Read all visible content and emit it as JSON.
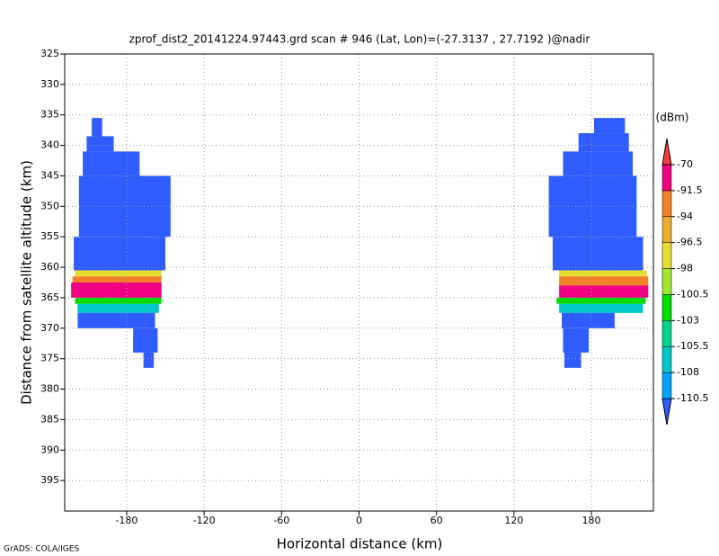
{
  "chart_data": {
    "type": "heatmap",
    "title": "zprof_dist2_20141224.97443.grd  scan # 946  (Lat, Lon)=(-27.3137 , 27.7192 )@nadir",
    "x_label": "Horizontal distance (km)",
    "y_label": "Distance from satellite altitude (km)",
    "footer": "GrADS: COLA/IGES",
    "xlim": [
      -228,
      228
    ],
    "xticks": [
      -180,
      -120,
      -60,
      0,
      60,
      120,
      180
    ],
    "ylim": [
      325,
      400
    ],
    "y_inverted": true,
    "yticks": [
      325,
      330,
      335,
      340,
      345,
      350,
      355,
      360,
      365,
      370,
      375,
      380,
      385,
      390,
      395
    ],
    "grid": true,
    "colorbar": {
      "unit": "(dBm)",
      "levels": [
        -110.5,
        -108,
        -105.5,
        -103,
        -100.5,
        -98,
        -96.5,
        -94,
        -91.5,
        -70
      ],
      "colors": [
        "#2e5cff",
        "#00a0ff",
        "#00c8c8",
        "#00d28c",
        "#00dc00",
        "#a0e632",
        "#e6dc32",
        "#e6af2d",
        "#f08228",
        "#f00082",
        "#fa3c3c"
      ]
    },
    "cells": [
      {
        "x": [
          -207,
          -199
        ],
        "y": [
          335.5,
          338.5
        ],
        "value": -112
      },
      {
        "x": [
          -211,
          -190
        ],
        "y": [
          338.5,
          341
        ],
        "value": -112
      },
      {
        "x": [
          -214,
          -170
        ],
        "y": [
          341,
          345
        ],
        "value": -112
      },
      {
        "x": [
          -217,
          -146
        ],
        "y": [
          345,
          355
        ],
        "value": -112
      },
      {
        "x": [
          -221,
          -150
        ],
        "y": [
          355,
          360.5
        ],
        "value": -112
      },
      {
        "x": [
          -220,
          -153
        ],
        "y": [
          360.5,
          361.5
        ],
        "value": -97
      },
      {
        "x": [
          -222,
          -153
        ],
        "y": [
          361.5,
          362.5
        ],
        "value": -93
      },
      {
        "x": [
          -223,
          -153
        ],
        "y": [
          362.5,
          365
        ],
        "value": -85
      },
      {
        "x": [
          -220,
          -153
        ],
        "y": [
          365,
          366
        ],
        "value": -102
      },
      {
        "x": [
          -218,
          -155
        ],
        "y": [
          366,
          367.5
        ],
        "value": -106
      },
      {
        "x": [
          -218,
          -158
        ],
        "y": [
          367.5,
          370
        ],
        "value": -112
      },
      {
        "x": [
          -175,
          -156
        ],
        "y": [
          370,
          374
        ],
        "value": -112
      },
      {
        "x": [
          -167,
          -159
        ],
        "y": [
          374,
          376.5
        ],
        "value": -112
      },
      {
        "x": [
          182,
          206
        ],
        "y": [
          335.5,
          338
        ],
        "value": -112
      },
      {
        "x": [
          170,
          209
        ],
        "y": [
          338,
          341
        ],
        "value": -112
      },
      {
        "x": [
          158,
          212
        ],
        "y": [
          341,
          345
        ],
        "value": -112
      },
      {
        "x": [
          147,
          215
        ],
        "y": [
          345,
          355
        ],
        "value": -112
      },
      {
        "x": [
          150,
          220
        ],
        "y": [
          355,
          360.5
        ],
        "value": -112
      },
      {
        "x": [
          155,
          223
        ],
        "y": [
          360.5,
          361.5
        ],
        "value": -97
      },
      {
        "x": [
          155,
          224
        ],
        "y": [
          361.5,
          363
        ],
        "value": -93
      },
      {
        "x": [
          155,
          224
        ],
        "y": [
          363,
          365
        ],
        "value": -85
      },
      {
        "x": [
          153,
          222
        ],
        "y": [
          365,
          366
        ],
        "value": -102
      },
      {
        "x": [
          155,
          220
        ],
        "y": [
          366,
          367.5
        ],
        "value": -106
      },
      {
        "x": [
          157,
          198
        ],
        "y": [
          367.5,
          370
        ],
        "value": -112
      },
      {
        "x": [
          158,
          178
        ],
        "y": [
          370,
          374
        ],
        "value": -112
      },
      {
        "x": [
          159,
          172
        ],
        "y": [
          374,
          376.5
        ],
        "value": -112
      }
    ]
  }
}
